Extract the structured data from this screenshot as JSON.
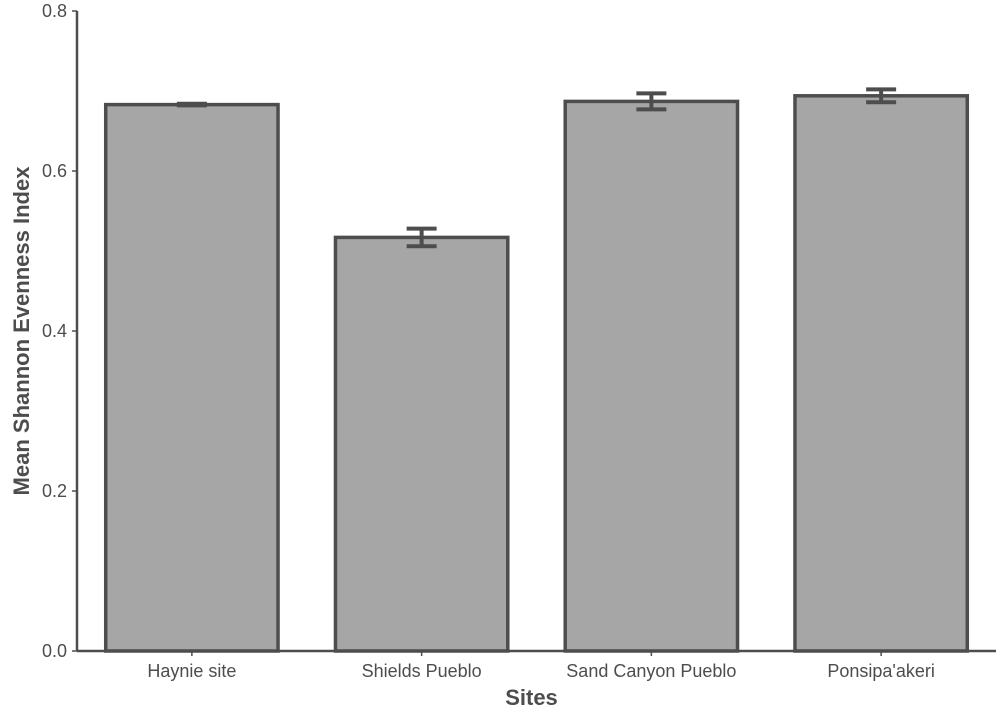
{
  "chart_data": {
    "type": "bar",
    "categories": [
      "Haynie site",
      "Shields Pueblo",
      "Sand Canyon Pueblo",
      "Ponsipa'akeri"
    ],
    "values": [
      0.683,
      0.517,
      0.687,
      0.694
    ],
    "errors": [
      0.001,
      0.011,
      0.01,
      0.008
    ],
    "title": "",
    "xlabel": "Sites",
    "ylabel": "Mean Shannon Evenness Index",
    "ylim": [
      0,
      0.8
    ],
    "yticks": [
      "0.0",
      "0.2",
      "0.4",
      "0.6",
      "0.8"
    ],
    "grid": false,
    "colors": {
      "bar_fill": "#a6a6a6",
      "bar_stroke": "#4d4d4d",
      "axis": "#4d4d4d",
      "text": "#4d4d4d"
    }
  }
}
